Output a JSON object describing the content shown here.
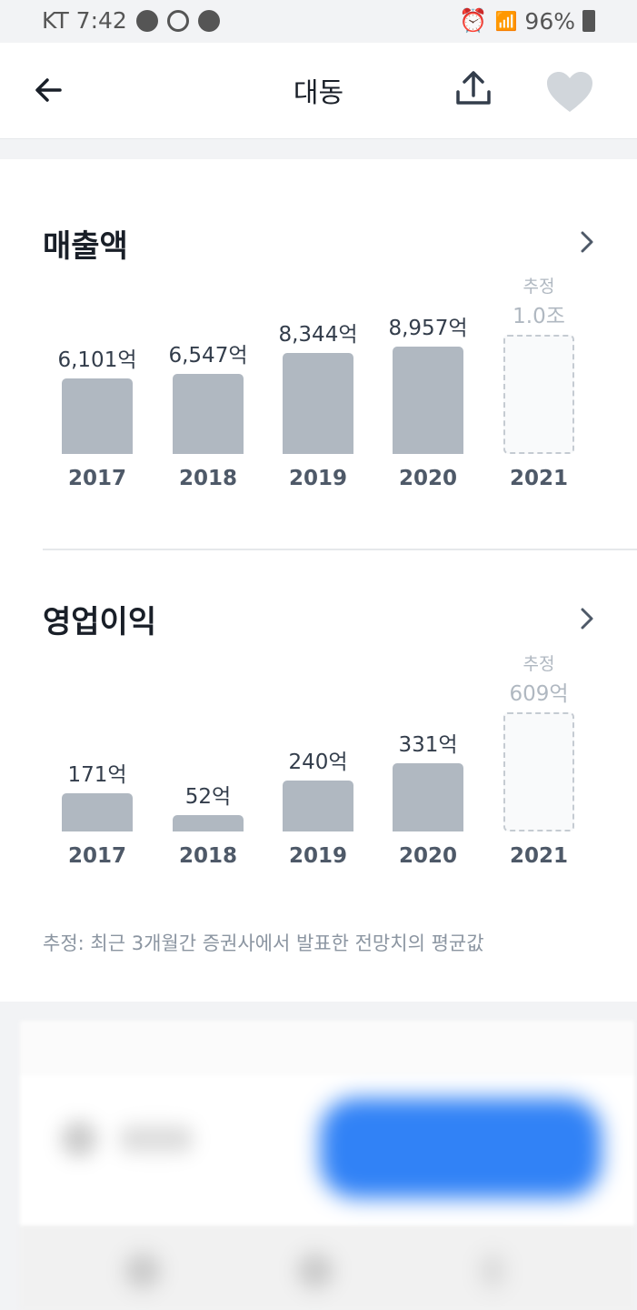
{
  "status_bar": {
    "carrier_time": "KT 7:42",
    "battery": "96%",
    "icons": [
      "kakaotalk-icon",
      "b-app-icon",
      "chat-bubble-icon",
      "alarm-icon",
      "wifi-icon",
      "hd-voice-icon",
      "signal-icon",
      "battery-icon"
    ]
  },
  "header": {
    "title": "대동",
    "back_icon": "arrow-left-icon",
    "share_icon": "share-icon",
    "favorite_icon": "heart-icon"
  },
  "colors": {
    "bar": "#b0b8c1",
    "estimate_border": "#c5cbd2",
    "accent": "#3182f6"
  },
  "chart_data": [
    {
      "type": "bar",
      "title": "매출액",
      "categories": [
        "2017",
        "2018",
        "2019",
        "2020",
        "2021"
      ],
      "values": [
        6101,
        6547,
        8344,
        8957,
        10000
      ],
      "labels": [
        "6,101억",
        "6,547억",
        "8,344억",
        "8,957억",
        "1.0조"
      ],
      "estimate": [
        false,
        false,
        false,
        false,
        true
      ],
      "estimate_label": "추정",
      "unit": "억"
    },
    {
      "type": "bar",
      "title": "영업이익",
      "categories": [
        "2017",
        "2018",
        "2019",
        "2020",
        "2021"
      ],
      "values": [
        171,
        52,
        240,
        331,
        609
      ],
      "labels": [
        "171억",
        "52억",
        "240억",
        "331억",
        "609억"
      ],
      "estimate": [
        false,
        false,
        false,
        false,
        true
      ],
      "estimate_label": "추정",
      "unit": "억"
    }
  ],
  "footnote": "추정: 최근 3개월간 증권사에서 발표한 전망치의 평균값"
}
